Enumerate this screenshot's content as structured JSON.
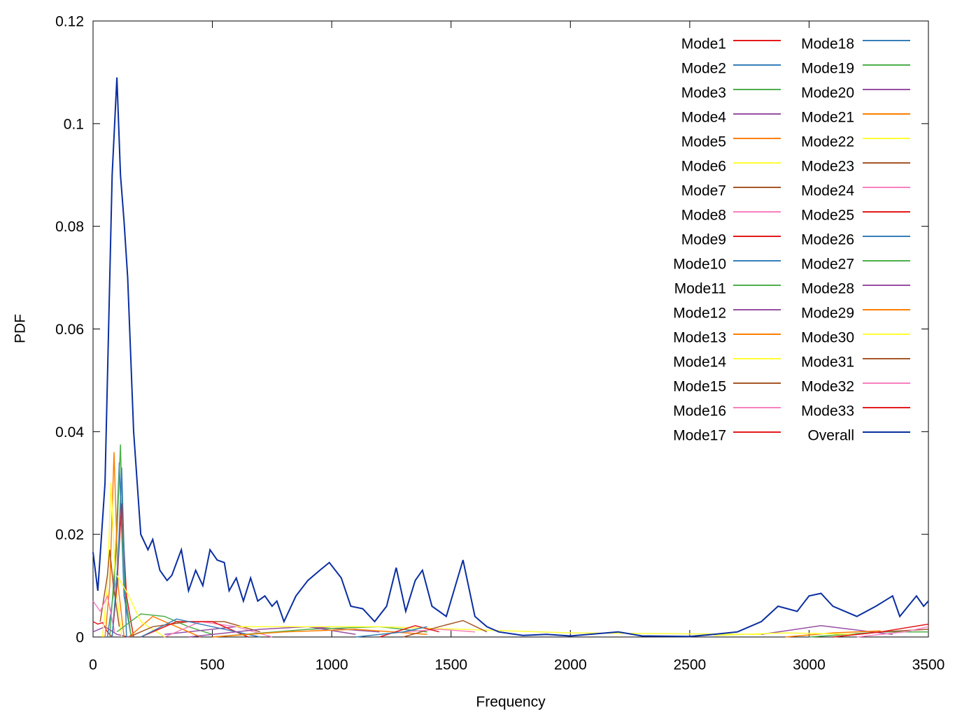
{
  "chart_data": {
    "type": "line",
    "x_label": "Frequency",
    "y_label": "PDF",
    "xlim": [
      0,
      3500
    ],
    "xticks": [
      0,
      500,
      1000,
      1500,
      2000,
      2500,
      3000,
      3500
    ],
    "ylim": [
      0,
      0.12
    ],
    "yticks": [
      0,
      0.02,
      0.04,
      0.06,
      0.08,
      0.1,
      0.12
    ],
    "legend": "upper right",
    "grid": false,
    "series": [
      {
        "name": "Mode1",
        "color": "#e41a1c",
        "x": [
          0,
          20,
          40,
          60,
          80
        ],
        "values": [
          0.003,
          0.0025,
          0.0028,
          0.001,
          0
        ]
      },
      {
        "name": "Mode2",
        "color": "#377eb8",
        "x": [
          60,
          90,
          110,
          130,
          160
        ],
        "values": [
          0,
          0.01,
          0.034,
          0.008,
          0
        ]
      },
      {
        "name": "Mode3",
        "color": "#4daf4a",
        "x": [
          70,
          100,
          115,
          130,
          160
        ],
        "values": [
          0,
          0.02,
          0.0375,
          0.01,
          0
        ]
      },
      {
        "name": "Mode4",
        "color": "#984ea3",
        "x": [
          0,
          50,
          100,
          150
        ],
        "values": [
          0.001,
          0.002,
          0.0005,
          0
        ]
      },
      {
        "name": "Mode5",
        "color": "#ff7f00",
        "x": [
          50,
          70,
          88,
          105,
          130
        ],
        "values": [
          0,
          0.01,
          0.036,
          0.01,
          0
        ]
      },
      {
        "name": "Mode6",
        "color": "#ffff33",
        "x": [
          40,
          60,
          75,
          95,
          120
        ],
        "values": [
          0,
          0.01,
          0.03,
          0.01,
          0
        ]
      },
      {
        "name": "Mode7",
        "color": "#a65628",
        "x": [
          30,
          60,
          70,
          85,
          110
        ],
        "values": [
          0.003,
          0.012,
          0.017,
          0.01,
          0.002
        ]
      },
      {
        "name": "Mode8",
        "color": "#f781bf",
        "x": [
          0,
          30,
          60,
          90
        ],
        "values": [
          0.007,
          0.005,
          0.008,
          0.001
        ]
      },
      {
        "name": "Mode9",
        "color": "#e41a1c",
        "x": [
          80,
          100,
          120,
          140,
          170
        ],
        "values": [
          0,
          0.01,
          0.026,
          0.008,
          0
        ]
      },
      {
        "name": "Mode10",
        "color": "#377eb8",
        "x": [
          80,
          105,
          120,
          140
        ],
        "values": [
          0,
          0.015,
          0.033,
          0
        ]
      },
      {
        "name": "Mode11",
        "color": "#4daf4a",
        "x": [
          100,
          200,
          300,
          400,
          500
        ],
        "values": [
          0.001,
          0.0045,
          0.004,
          0.002,
          0.0005
        ]
      },
      {
        "name": "Mode12",
        "color": "#984ea3",
        "x": [
          300,
          600,
          900,
          1200
        ],
        "values": [
          0.0005,
          0.002,
          0.002,
          0.001
        ]
      },
      {
        "name": "Mode13",
        "color": "#ff7f00",
        "x": [
          150,
          250,
          350,
          450
        ],
        "values": [
          0,
          0.004,
          0.002,
          0
        ]
      },
      {
        "name": "Mode14",
        "color": "#ffff33",
        "x": [
          100,
          150,
          200,
          300
        ],
        "values": [
          0.012,
          0.008,
          0.003,
          0
        ]
      },
      {
        "name": "Mode15",
        "color": "#a65628",
        "x": [
          150,
          250,
          400,
          550,
          700
        ],
        "values": [
          0,
          0.002,
          0.003,
          0.003,
          0.001
        ]
      },
      {
        "name": "Mode16",
        "color": "#f781bf",
        "x": [
          300,
          450,
          600,
          750
        ],
        "values": [
          0,
          0.003,
          0.002,
          0
        ]
      },
      {
        "name": "Mode17",
        "color": "#e41a1c",
        "x": [
          200,
          350,
          500,
          650
        ],
        "values": [
          0,
          0.003,
          0.003,
          0
        ]
      },
      {
        "name": "Mode18",
        "color": "#377eb8",
        "x": [
          200,
          350,
          500,
          700
        ],
        "values": [
          0,
          0.0035,
          0.002,
          0
        ]
      },
      {
        "name": "Mode19",
        "color": "#4daf4a",
        "x": [
          500,
          900,
          1200,
          1400
        ],
        "values": [
          0,
          0.0015,
          0.002,
          0.001
        ]
      },
      {
        "name": "Mode20",
        "color": "#984ea3",
        "x": [
          400,
          700,
          900,
          1100
        ],
        "values": [
          0,
          0.0015,
          0.002,
          0.0005
        ]
      },
      {
        "name": "Mode21",
        "color": "#ff7f00",
        "x": [
          500,
          800,
          1100,
          1400
        ],
        "values": [
          0,
          0.001,
          0.0015,
          0.0005
        ]
      },
      {
        "name": "Mode22",
        "color": "#ffff33",
        "x": [
          600,
          1200,
          2000,
          2800
        ],
        "values": [
          0.002,
          0.002,
          0.0008,
          0.0005
        ]
      },
      {
        "name": "Mode23",
        "color": "#a65628",
        "x": [
          1300,
          1450,
          1550,
          1650
        ],
        "values": [
          0,
          0.002,
          0.0032,
          0.001
        ]
      },
      {
        "name": "Mode24",
        "color": "#f781bf",
        "x": [
          1300,
          1450,
          1600
        ],
        "values": [
          0.001,
          0.0015,
          0.001
        ]
      },
      {
        "name": "Mode25",
        "color": "#e41a1c",
        "x": [
          1200,
          1350,
          1450
        ],
        "values": [
          0,
          0.0022,
          0.001
        ]
      },
      {
        "name": "Mode26",
        "color": "#377eb8",
        "x": [
          1100,
          1300,
          1400
        ],
        "values": [
          0,
          0.001,
          0.002
        ]
      },
      {
        "name": "Mode27",
        "color": "#4daf4a",
        "x": [
          3000,
          3300,
          3500
        ],
        "values": [
          0,
          0.001,
          0.001
        ]
      },
      {
        "name": "Mode28",
        "color": "#984ea3",
        "x": [
          2800,
          3050,
          3350
        ],
        "values": [
          0.0005,
          0.0022,
          0.0005
        ]
      },
      {
        "name": "Mode29",
        "color": "#ff7f00",
        "x": [
          2900,
          3100,
          3300
        ],
        "values": [
          0,
          0.0008,
          0.0012
        ]
      },
      {
        "name": "Mode30",
        "color": "#ffff33",
        "x": [
          2600,
          2900,
          3200
        ],
        "values": [
          0.0003,
          0.0008,
          0.0005
        ]
      },
      {
        "name": "Mode31",
        "color": "#a65628",
        "x": [
          3100,
          3300,
          3500
        ],
        "values": [
          0,
          0.001,
          0.0015
        ]
      },
      {
        "name": "Mode32",
        "color": "#f781bf",
        "x": [
          3200,
          3400,
          3500
        ],
        "values": [
          0,
          0.001,
          0.002
        ]
      },
      {
        "name": "Mode33",
        "color": "#e41a1c",
        "x": [
          3100,
          3300,
          3500
        ],
        "values": [
          0,
          0.001,
          0.0025
        ]
      },
      {
        "name": "Overall",
        "color": "#0a2ea0",
        "x": [
          0,
          20,
          50,
          80,
          100,
          115,
          130,
          145,
          170,
          200,
          230,
          250,
          280,
          310,
          330,
          370,
          400,
          430,
          460,
          490,
          520,
          550,
          570,
          600,
          630,
          660,
          690,
          720,
          750,
          770,
          800,
          850,
          900,
          950,
          990,
          1040,
          1080,
          1130,
          1180,
          1230,
          1270,
          1310,
          1350,
          1380,
          1420,
          1480,
          1550,
          1600,
          1650,
          1700,
          1800,
          1900,
          2000,
          2200,
          2300,
          2500,
          2600,
          2700,
          2800,
          2870,
          2950,
          3000,
          3050,
          3100,
          3150,
          3200,
          3280,
          3350,
          3380,
          3450,
          3480,
          3500
        ],
        "values": [
          0.0165,
          0.009,
          0.03,
          0.09,
          0.109,
          0.09,
          0.081,
          0.07,
          0.04,
          0.02,
          0.017,
          0.019,
          0.013,
          0.011,
          0.012,
          0.017,
          0.009,
          0.013,
          0.01,
          0.017,
          0.015,
          0.0145,
          0.009,
          0.0115,
          0.007,
          0.0115,
          0.007,
          0.008,
          0.006,
          0.007,
          0.003,
          0.008,
          0.011,
          0.013,
          0.0145,
          0.0115,
          0.006,
          0.0055,
          0.003,
          0.006,
          0.0135,
          0.005,
          0.011,
          0.013,
          0.006,
          0.004,
          0.015,
          0.004,
          0.002,
          0.001,
          0.0003,
          0.0005,
          0.0002,
          0.001,
          0.0002,
          0.0001,
          0.0005,
          0.001,
          0.003,
          0.006,
          0.005,
          0.008,
          0.0085,
          0.006,
          0.005,
          0.004,
          0.006,
          0.008,
          0.004,
          0.008,
          0.006,
          0.007
        ]
      }
    ]
  }
}
